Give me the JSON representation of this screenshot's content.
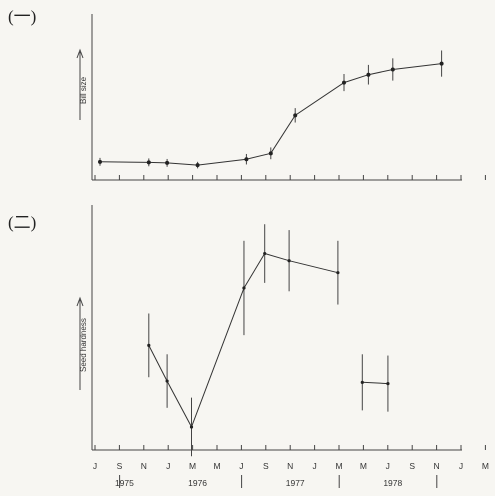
{
  "chart_data": [
    {
      "type": "line",
      "panel_label": "(一)",
      "ylabel": "Bill size",
      "title": "",
      "grid": false,
      "points": [
        {
          "x": 0.0,
          "y": 0.07,
          "err": 0.03
        },
        {
          "x": 2.0,
          "y": 0.066,
          "err": 0.03
        },
        {
          "x": 2.75,
          "y": 0.062,
          "err": 0.03
        },
        {
          "x": 4.0,
          "y": 0.045,
          "err": 0.025
        },
        {
          "x": 6.0,
          "y": 0.09,
          "err": 0.04
        },
        {
          "x": 7.0,
          "y": 0.135,
          "err": 0.045
        },
        {
          "x": 8.0,
          "y": 0.425,
          "err": 0.055
        },
        {
          "x": 10.0,
          "y": 0.675,
          "err": 0.065
        },
        {
          "x": 11.0,
          "y": 0.735,
          "err": 0.075
        },
        {
          "x": 12.0,
          "y": 0.775,
          "err": 0.085
        },
        {
          "x": 14.0,
          "y": 0.82,
          "err": 0.1
        }
      ]
    },
    {
      "type": "line",
      "panel_label": "(二)",
      "ylabel": "Seed hardness",
      "title": "",
      "grid": false,
      "segments": [
        [
          {
            "x": 2.0,
            "y": 0.43,
            "err": 0.125
          },
          {
            "x": 2.75,
            "y": 0.29,
            "err": 0.105
          },
          {
            "x": 3.75,
            "y": 0.11,
            "err": 0.115
          },
          {
            "x": 5.9,
            "y": 0.655,
            "err": 0.185
          },
          {
            "x": 6.75,
            "y": 0.79,
            "err": 0.115
          },
          {
            "x": 7.75,
            "y": 0.762,
            "err": 0.12
          },
          {
            "x": 9.75,
            "y": 0.715,
            "err": 0.125
          }
        ],
        [
          {
            "x": 10.75,
            "y": 0.285,
            "err": 0.11
          },
          {
            "x": 11.8,
            "y": 0.28,
            "err": 0.11
          }
        ]
      ]
    }
  ],
  "x_axis": {
    "month_ticks": [
      "J",
      "S",
      "N",
      "J",
      "M",
      "M",
      "J",
      "S",
      "N",
      "J",
      "M",
      "M",
      "J",
      "S",
      "N",
      "J",
      "M",
      "M",
      "J",
      "S",
      "N",
      "J"
    ],
    "years": [
      {
        "label": "1975",
        "x": 1.0
      },
      {
        "label": "1976",
        "x": 4.0
      },
      {
        "label": "1977",
        "x": 8.0
      },
      {
        "label": "1978",
        "x": 12.0
      }
    ],
    "year_boundaries": [
      1.5,
      6.5,
      10.5,
      14.5
    ]
  }
}
